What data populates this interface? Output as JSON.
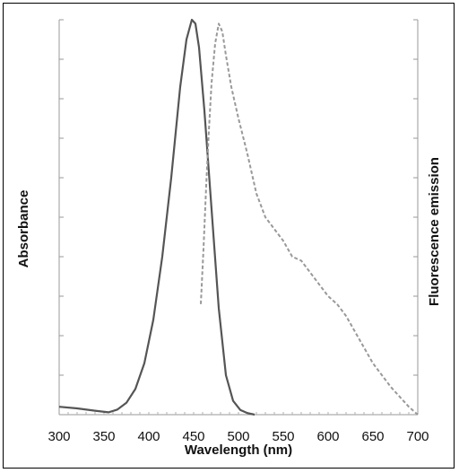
{
  "chart_data": {
    "type": "line",
    "title": "",
    "xlabel": "Wavelength (nm)",
    "ylabel_left": "Absorbance",
    "ylabel_right": "Fluorescence emission",
    "xlim": [
      300,
      700
    ],
    "ylim": [
      0,
      1
    ],
    "xticks": [
      300,
      350,
      400,
      450,
      500,
      550,
      600,
      650,
      700
    ],
    "grid": false,
    "legend": "none",
    "series": [
      {
        "style": "solid",
        "color": "#555555",
        "x": [
          300,
          320,
          340,
          355,
          365,
          375,
          385,
          395,
          405,
          415,
          425,
          435,
          442,
          448,
          452,
          456,
          462,
          470,
          478,
          486,
          494,
          502,
          510,
          518
        ],
        "y": [
          0.02,
          0.016,
          0.01,
          0.006,
          0.013,
          0.03,
          0.065,
          0.13,
          0.24,
          0.4,
          0.6,
          0.83,
          0.95,
          1.0,
          0.99,
          0.93,
          0.77,
          0.52,
          0.27,
          0.1,
          0.035,
          0.012,
          0.004,
          0.0
        ]
      },
      {
        "style": "dashed",
        "color": "#999999",
        "x": [
          458,
          461,
          464,
          467,
          470,
          474,
          478,
          482,
          486,
          492,
          500,
          510,
          520,
          530,
          540,
          550,
          560,
          570,
          580,
          590,
          600,
          610,
          620,
          630,
          640,
          650,
          660,
          670,
          680,
          690,
          700
        ],
        "y": [
          0.28,
          0.42,
          0.58,
          0.72,
          0.84,
          0.94,
          0.99,
          0.97,
          0.91,
          0.83,
          0.75,
          0.66,
          0.56,
          0.5,
          0.47,
          0.44,
          0.4,
          0.39,
          0.36,
          0.33,
          0.3,
          0.28,
          0.25,
          0.21,
          0.17,
          0.13,
          0.1,
          0.07,
          0.045,
          0.02,
          0.0
        ]
      }
    ]
  }
}
